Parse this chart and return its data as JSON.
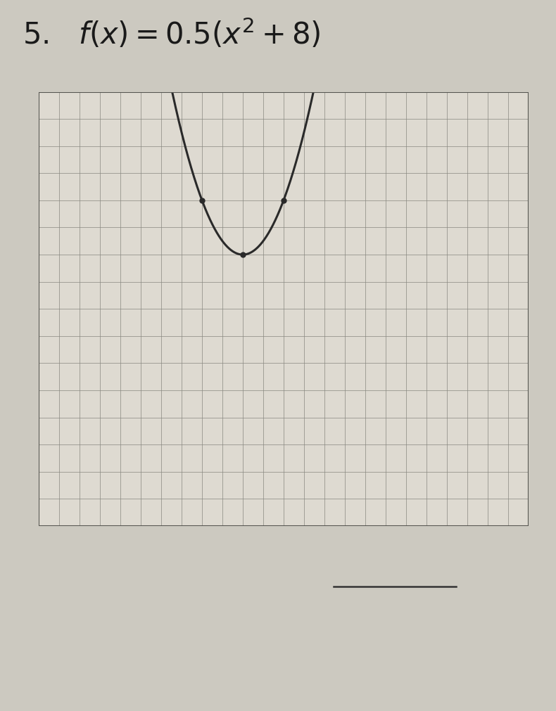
{
  "background_color": "#ccc9c0",
  "paper_color": "#dedad1",
  "grid_color": "#888880",
  "axis_color": "#1a1a1a",
  "curve_color": "#2a2a2a",
  "text_color": "#1a1a1a",
  "xlim": [
    -10,
    14
  ],
  "ylim": [
    -6,
    10
  ],
  "x_axis_pos": 0,
  "y_axis_pos": 0,
  "fig_width": 7.9,
  "fig_height": 10.12,
  "dpi": 100
}
